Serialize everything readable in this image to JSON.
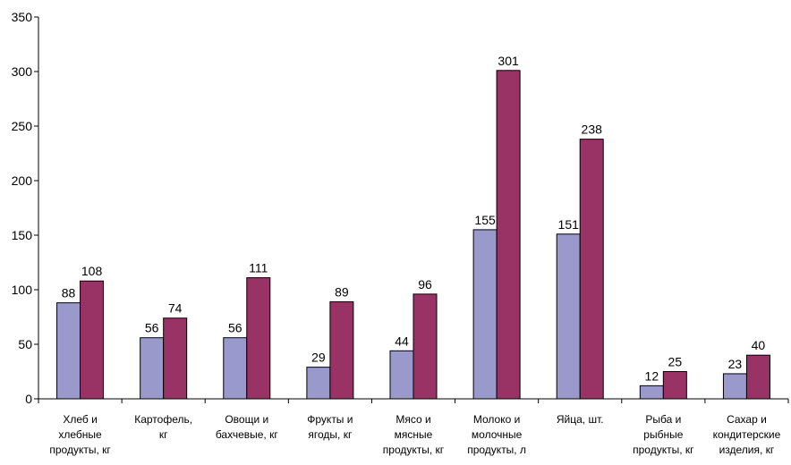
{
  "chart_data": {
    "type": "bar",
    "categories": [
      [
        "Хлеб и",
        "хлебные",
        "продукты, кг"
      ],
      [
        "Картофель,",
        "кг"
      ],
      [
        "Овощи и",
        "бахчевые, кг"
      ],
      [
        "Фрукты и",
        "ягоды, кг"
      ],
      [
        "Мясо и",
        "мясные",
        "продукты, кг"
      ],
      [
        "Молоко и",
        "молочные",
        "продукты, л"
      ],
      [
        "Яйца, шт."
      ],
      [
        "Рыба и",
        "рыбные",
        "продукты, кг"
      ],
      [
        "Сахар и",
        "кондитерские",
        "изделия, кг"
      ]
    ],
    "series": [
      {
        "values": [
          88,
          56,
          56,
          29,
          44,
          155,
          151,
          12,
          23
        ],
        "color": "#9999cc"
      },
      {
        "values": [
          108,
          74,
          111,
          89,
          96,
          301,
          238,
          25,
          40
        ],
        "color": "#993366"
      }
    ],
    "ylim": [
      0,
      350
    ],
    "yticks": [
      0,
      50,
      100,
      150,
      200,
      250,
      300,
      350
    ],
    "grid": false,
    "legend": "none",
    "title": "",
    "xlabel": "",
    "ylabel": ""
  }
}
